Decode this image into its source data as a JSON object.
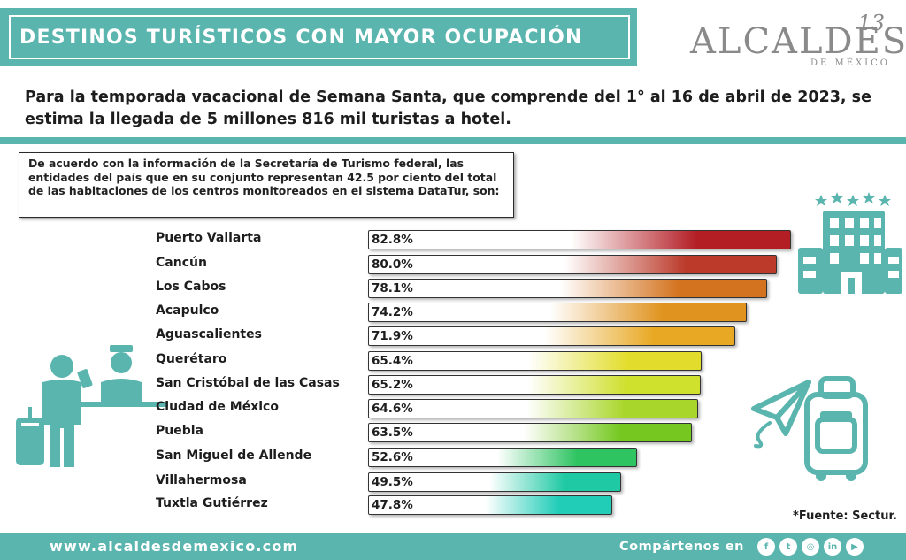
{
  "header": {
    "title": "DESTINOS TURÍSTICOS CON MAYOR OCUPACIÓN",
    "logo_text": "ALCALDES",
    "logo_subtitle": "DE MÉXICO",
    "logo_number": "13"
  },
  "headline": "Para la temporada vacacional de Semana Santa, que comprende del 1° al 16 de abril de 2023, se estima la llegada de 5 millones 816 mil turistas a hotel.",
  "note": "De acuerdo con la información de la Secretaría de Turismo federal, las entidades del país que en su conjunto representan 42.5 por ciento del total de las habitaciones de los centros monitoreados en el sistema DataTur, son:",
  "chart_data": {
    "type": "bar",
    "orientation": "horizontal",
    "title": "",
    "xlabel": "",
    "ylabel": "",
    "categories": [
      "Puerto Vallarta",
      "Cancún",
      "Los Cabos",
      "Acapulco",
      "Aguascalientes",
      "Querétaro",
      "San Cristóbal de las Casas",
      "Ciudad de México",
      "Puebla",
      "San Miguel de Allende",
      "Villahermosa",
      "Tuxtla Gutiérrez"
    ],
    "values": [
      82.8,
      80.0,
      78.1,
      74.2,
      71.9,
      65.4,
      65.2,
      64.6,
      63.5,
      52.6,
      49.5,
      47.8
    ],
    "value_labels": [
      "82.8%",
      "80.0%",
      "78.1%",
      "74.2%",
      "71.9%",
      "65.4%",
      "65.2%",
      "64.6%",
      "63.5%",
      "52.6%",
      "49.5%",
      "47.8%"
    ],
    "bar_colors": [
      "#b31d24",
      "#bb3a2a",
      "#d4731f",
      "#e0931e",
      "#e8a823",
      "#e2dd2c",
      "#cfe02d",
      "#a9d62a",
      "#76c821",
      "#2ec462",
      "#1fc9a4",
      "#22cdb8"
    ],
    "xlim": [
      0,
      100
    ],
    "grid": false,
    "legend": "none"
  },
  "source": "*Fuente: Sectur.",
  "footer": {
    "url": "www.alcaldesdemexico.com",
    "share": "Compártenos en",
    "social_icons": [
      "facebook-icon",
      "twitter-icon",
      "instagram-icon",
      "linkedin-icon",
      "youtube-icon"
    ],
    "social_glyphs": [
      "f",
      "t",
      "◎",
      "in",
      "▶"
    ]
  },
  "colors": {
    "teal": "#5ab5ae",
    "teal_dark": "#4aa9a2"
  }
}
